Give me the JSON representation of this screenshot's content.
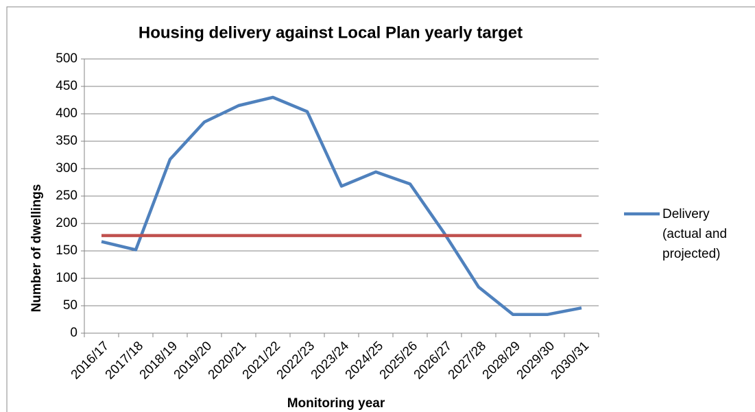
{
  "chart_data": {
    "type": "line",
    "title": "Housing delivery against Local Plan yearly target",
    "x_label": "Monitoring year",
    "y_label": "Number of dwellings",
    "categories": [
      "2016/17",
      "2017/18",
      "2018/19",
      "2019/20",
      "2020/21",
      "2021/22",
      "2022/23",
      "2023/24",
      "2024/25",
      "2025/26",
      "2026/27",
      "2027/28",
      "2028/29",
      "2029/30",
      "2030/31"
    ],
    "series": [
      {
        "name": "Delivery (actual and projected)",
        "color": "#4f81bd",
        "values": [
          167,
          152,
          317,
          385,
          415,
          430,
          404,
          268,
          294,
          272,
          182,
          84,
          34,
          34,
          46
        ]
      },
      {
        "color": "#c0504d",
        "values": [
          178,
          178,
          178,
          178,
          178,
          178,
          178,
          178,
          178,
          178,
          178,
          178,
          178,
          178,
          178
        ]
      }
    ],
    "ylim": [
      0,
      500
    ],
    "yticks": [
      0,
      50,
      100,
      150,
      200,
      250,
      300,
      350,
      400,
      450,
      500
    ],
    "grid": true,
    "legend": "right"
  }
}
